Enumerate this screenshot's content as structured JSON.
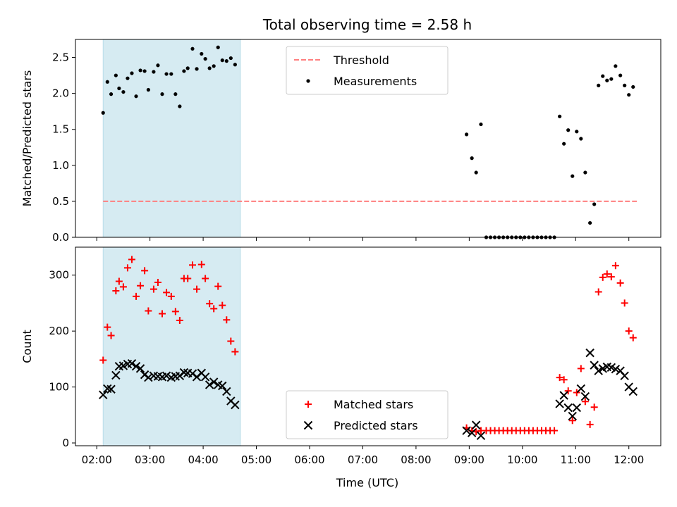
{
  "chart_data": {
    "type": "scatter",
    "title": "Total observing time = 2.58 h",
    "xlabel": "Time (UTC)",
    "x_axis": {
      "unit": "hours UTC",
      "range": [
        1.6,
        12.6
      ],
      "ticks": [
        2,
        3,
        4,
        5,
        6,
        7,
        8,
        9,
        10,
        11,
        12
      ],
      "tick_labels": [
        "02:00",
        "03:00",
        "04:00",
        "05:00",
        "06:00",
        "07:00",
        "08:00",
        "09:00",
        "10:00",
        "11:00",
        "12:00"
      ]
    },
    "shaded_interval": {
      "start": 2.12,
      "end": 4.7,
      "color": "#add8e6"
    },
    "panels": [
      {
        "id": "ratio",
        "ylabel": "Matched/Predicted stars",
        "ylim": [
          0,
          2.75
        ],
        "yticks": [
          0.0,
          0.5,
          1.0,
          1.5,
          2.0,
          2.5
        ],
        "ytick_labels": [
          "0.0",
          "0.5",
          "1.0",
          "1.5",
          "2.0",
          "2.5"
        ],
        "legend_location": "top-center",
        "threshold": {
          "name": "Threshold",
          "value": 0.5,
          "x_range": [
            2.12,
            12.15
          ],
          "color": "#ff7f7f",
          "style": "dashed"
        },
        "series": [
          {
            "name": "Measurements",
            "marker": "dot",
            "color": "#000000",
            "points": [
              [
                2.12,
                1.73
              ],
              [
                2.2,
                2.16
              ],
              [
                2.27,
                1.99
              ],
              [
                2.36,
                2.25
              ],
              [
                2.42,
                2.07
              ],
              [
                2.5,
                2.02
              ],
              [
                2.58,
                2.21
              ],
              [
                2.66,
                2.28
              ],
              [
                2.74,
                1.96
              ],
              [
                2.82,
                2.32
              ],
              [
                2.9,
                2.31
              ],
              [
                2.97,
                2.05
              ],
              [
                3.07,
                2.3
              ],
              [
                3.15,
                2.39
              ],
              [
                3.23,
                1.99
              ],
              [
                3.31,
                2.27
              ],
              [
                3.4,
                2.27
              ],
              [
                3.48,
                1.99
              ],
              [
                3.56,
                1.82
              ],
              [
                3.64,
                2.31
              ],
              [
                3.71,
                2.35
              ],
              [
                3.8,
                2.62
              ],
              [
                3.88,
                2.34
              ],
              [
                3.97,
                2.55
              ],
              [
                4.04,
                2.48
              ],
              [
                4.12,
                2.35
              ],
              [
                4.2,
                2.38
              ],
              [
                4.28,
                2.64
              ],
              [
                4.36,
                2.46
              ],
              [
                4.44,
                2.45
              ],
              [
                4.52,
                2.49
              ],
              [
                4.6,
                2.4
              ],
              [
                8.95,
                1.43
              ],
              [
                9.05,
                1.1
              ],
              [
                9.13,
                0.9
              ],
              [
                9.22,
                1.57
              ],
              [
                9.32,
                0.0
              ],
              [
                9.4,
                0.0
              ],
              [
                9.48,
                0.0
              ],
              [
                9.56,
                0.0
              ],
              [
                9.64,
                0.0
              ],
              [
                9.72,
                0.0
              ],
              [
                9.8,
                0.0
              ],
              [
                9.88,
                0.0
              ],
              [
                9.96,
                0.0
              ],
              [
                10.04,
                0.0
              ],
              [
                10.12,
                0.0
              ],
              [
                10.2,
                0.0
              ],
              [
                10.28,
                0.0
              ],
              [
                10.36,
                0.0
              ],
              [
                10.44,
                0.0
              ],
              [
                10.52,
                0.0
              ],
              [
                10.6,
                0.0
              ],
              [
                10.7,
                1.68
              ],
              [
                10.78,
                1.3
              ],
              [
                10.86,
                1.49
              ],
              [
                10.94,
                0.85
              ],
              [
                11.02,
                1.47
              ],
              [
                11.1,
                1.37
              ],
              [
                11.18,
                0.9
              ],
              [
                11.27,
                0.2
              ],
              [
                11.35,
                0.46
              ],
              [
                11.43,
                2.11
              ],
              [
                11.51,
                2.24
              ],
              [
                11.59,
                2.18
              ],
              [
                11.67,
                2.2
              ],
              [
                11.75,
                2.38
              ],
              [
                11.84,
                2.25
              ],
              [
                11.92,
                2.11
              ],
              [
                12.0,
                1.98
              ],
              [
                12.08,
                2.09
              ]
            ]
          }
        ]
      },
      {
        "id": "counts",
        "ylabel": "Count",
        "ylim": [
          -5,
          350
        ],
        "yticks": [
          0,
          100,
          200,
          300
        ],
        "ytick_labels": [
          "0",
          "100",
          "200",
          "300"
        ],
        "legend_location": "bottom-center",
        "series": [
          {
            "name": "Matched stars",
            "marker": "plus",
            "color": "#ff0000",
            "points": [
              [
                2.12,
                148
              ],
              [
                2.2,
                207
              ],
              [
                2.27,
                192
              ],
              [
                2.36,
                272
              ],
              [
                2.42,
                289
              ],
              [
                2.5,
                279
              ],
              [
                2.58,
                313
              ],
              [
                2.66,
                328
              ],
              [
                2.74,
                262
              ],
              [
                2.82,
                281
              ],
              [
                2.9,
                308
              ],
              [
                2.97,
                236
              ],
              [
                3.07,
                275
              ],
              [
                3.15,
                287
              ],
              [
                3.23,
                231
              ],
              [
                3.31,
                269
              ],
              [
                3.4,
                262
              ],
              [
                3.48,
                235
              ],
              [
                3.56,
                219
              ],
              [
                3.64,
                294
              ],
              [
                3.71,
                294
              ],
              [
                3.8,
                318
              ],
              [
                3.88,
                275
              ],
              [
                3.97,
                319
              ],
              [
                4.04,
                294
              ],
              [
                4.12,
                249
              ],
              [
                4.2,
                240
              ],
              [
                4.28,
                280
              ],
              [
                4.36,
                246
              ],
              [
                4.44,
                220
              ],
              [
                4.52,
                182
              ],
              [
                4.6,
                163
              ],
              [
                8.95,
                27
              ],
              [
                9.05,
                22
              ],
              [
                9.13,
                20
              ],
              [
                9.22,
                22
              ],
              [
                9.32,
                22
              ],
              [
                9.4,
                22
              ],
              [
                9.48,
                22
              ],
              [
                9.56,
                22
              ],
              [
                9.64,
                22
              ],
              [
                9.72,
                22
              ],
              [
                9.8,
                22
              ],
              [
                9.88,
                22
              ],
              [
                9.96,
                22
              ],
              [
                10.04,
                22
              ],
              [
                10.12,
                22
              ],
              [
                10.2,
                22
              ],
              [
                10.28,
                22
              ],
              [
                10.36,
                22
              ],
              [
                10.44,
                22
              ],
              [
                10.52,
                22
              ],
              [
                10.6,
                22
              ],
              [
                10.7,
                117
              ],
              [
                10.78,
                113
              ],
              [
                10.86,
                93
              ],
              [
                10.94,
                40
              ],
              [
                11.02,
                90
              ],
              [
                11.1,
                133
              ],
              [
                11.18,
                74
              ],
              [
                11.27,
                33
              ],
              [
                11.35,
                64
              ],
              [
                11.43,
                270
              ],
              [
                11.51,
                296
              ],
              [
                11.59,
                302
              ],
              [
                11.67,
                297
              ],
              [
                11.75,
                317
              ],
              [
                11.84,
                286
              ],
              [
                11.92,
                250
              ],
              [
                12.0,
                200
              ],
              [
                12.08,
                188
              ]
            ]
          },
          {
            "name": "Predicted stars",
            "marker": "x",
            "color": "#000000",
            "points": [
              [
                2.12,
                86
              ],
              [
                2.2,
                97
              ],
              [
                2.27,
                96
              ],
              [
                2.36,
                121
              ],
              [
                2.42,
                137
              ],
              [
                2.5,
                138
              ],
              [
                2.58,
                141
              ],
              [
                2.66,
                142
              ],
              [
                2.74,
                137
              ],
              [
                2.82,
                133
              ],
              [
                2.9,
                122
              ],
              [
                2.97,
                117
              ],
              [
                3.07,
                120
              ],
              [
                3.15,
                119
              ],
              [
                3.23,
                118
              ],
              [
                3.31,
                120
              ],
              [
                3.4,
                117
              ],
              [
                3.48,
                119
              ],
              [
                3.56,
                120
              ],
              [
                3.64,
                126
              ],
              [
                3.71,
                125
              ],
              [
                3.8,
                124
              ],
              [
                3.88,
                118
              ],
              [
                3.97,
                125
              ],
              [
                4.04,
                118
              ],
              [
                4.12,
                104
              ],
              [
                4.2,
                109
              ],
              [
                4.28,
                104
              ],
              [
                4.36,
                102
              ],
              [
                4.44,
                92
              ],
              [
                4.52,
                75
              ],
              [
                4.6,
                68
              ],
              [
                8.95,
                22
              ],
              [
                9.05,
                18
              ],
              [
                9.13,
                32
              ],
              [
                9.22,
                13
              ],
              [
                10.7,
                70
              ],
              [
                10.78,
                85
              ],
              [
                10.86,
                63
              ],
              [
                10.94,
                48
              ],
              [
                11.02,
                63
              ],
              [
                11.1,
                97
              ],
              [
                11.18,
                83
              ],
              [
                11.27,
                161
              ],
              [
                11.35,
                139
              ],
              [
                11.43,
                129
              ],
              [
                11.51,
                133
              ],
              [
                11.59,
                136
              ],
              [
                11.67,
                135
              ],
              [
                11.75,
                132
              ],
              [
                11.84,
                129
              ],
              [
                11.92,
                120
              ],
              [
                12.0,
                100
              ],
              [
                12.08,
                92
              ]
            ]
          }
        ]
      }
    ]
  }
}
